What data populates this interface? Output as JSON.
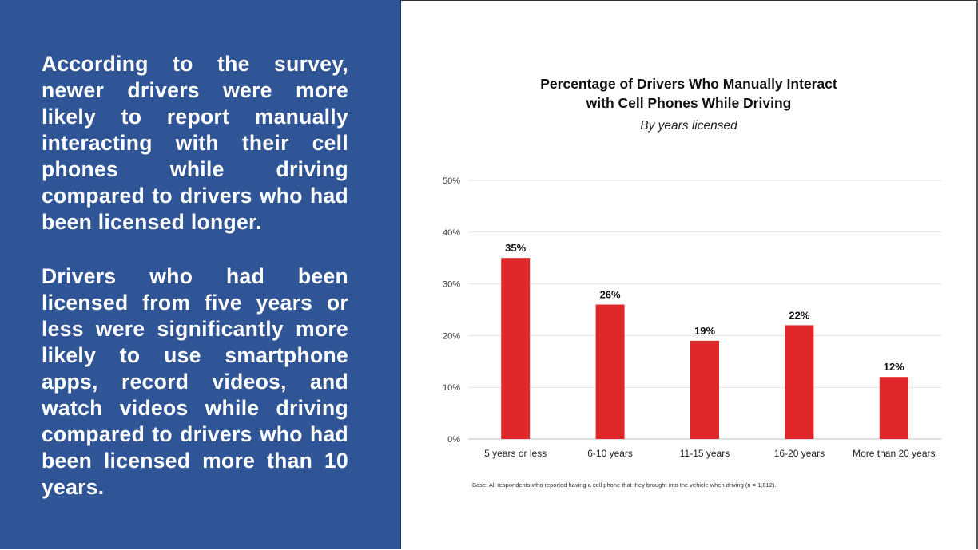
{
  "left_panel": {
    "paragraph_1": "According to the survey, newer drivers were more likely to report manually interacting with their cell phones while driving compared to drivers who had been licensed longer.",
    "paragraph_2": "Drivers who had been licensed from five years or less were significantly more likely to use smartphone apps, record videos, and watch videos while driving compared to drivers who had been licensed more than 10 years.",
    "background_color": "#2f5597"
  },
  "chart_data": {
    "type": "bar",
    "title_line_1": "Percentage of Drivers Who Manually Interact",
    "title_line_2": "with Cell Phones While Driving",
    "subtitle": "By years licensed",
    "categories": [
      "5 years or less",
      "6-10 years",
      "11-15 years",
      "16-20 years",
      "More than 20 years"
    ],
    "values": [
      35,
      26,
      19,
      22,
      12
    ],
    "data_labels": [
      "35%",
      "26%",
      "19%",
      "22%",
      "12%"
    ],
    "y_ticks": [
      0,
      10,
      20,
      30,
      40,
      50
    ],
    "y_tick_labels": [
      "0%",
      "10%",
      "20%",
      "30%",
      "40%",
      "50%"
    ],
    "ylim": [
      0,
      50
    ],
    "grid": true,
    "bar_color": "#e0282a",
    "footnote": "Base: All respondents who reported having a cell phone that they brought into the vehicle when driving (n = 1,812)."
  }
}
